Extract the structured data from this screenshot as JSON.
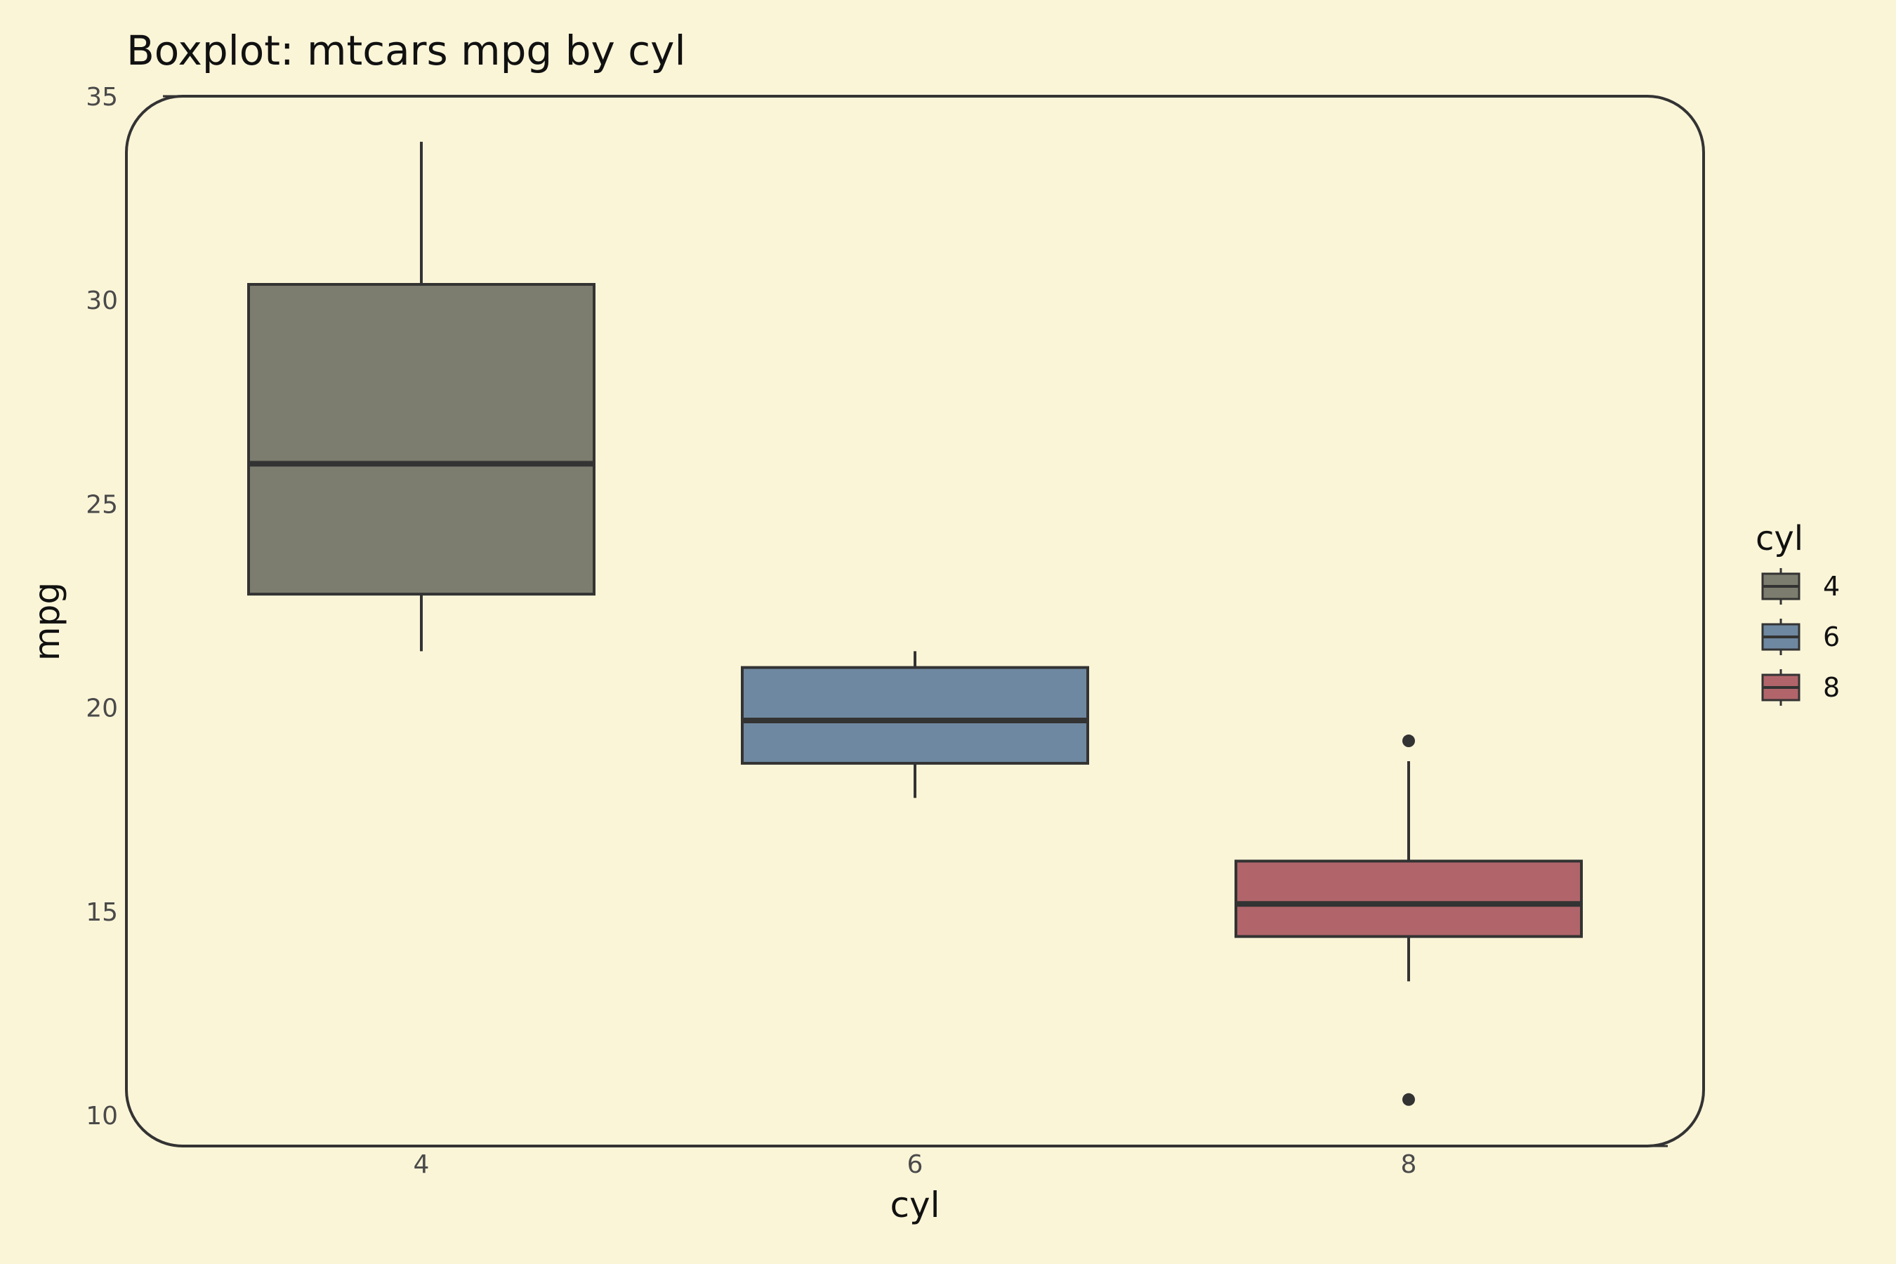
{
  "chart_data": {
    "type": "boxplot",
    "title": "Boxplot: mtcars mpg by cyl",
    "xlabel": "cyl",
    "ylabel": "mpg",
    "ylim": [
      10,
      35
    ],
    "yticks": [
      "10",
      "15",
      "20",
      "25",
      "30",
      "35"
    ],
    "categories": [
      "4",
      "6",
      "8"
    ],
    "boxes": [
      {
        "category": "4",
        "whisker_low": 21.4,
        "q1": 22.8,
        "median": 26.0,
        "q3": 30.4,
        "whisker_high": 33.9,
        "outliers": []
      },
      {
        "category": "6",
        "whisker_low": 17.8,
        "q1": 18.65,
        "median": 19.7,
        "q3": 21.0,
        "whisker_high": 21.4,
        "outliers": []
      },
      {
        "category": "8",
        "whisker_low": 13.3,
        "q1": 14.4,
        "median": 15.2,
        "q3": 16.25,
        "whisker_high": 18.7,
        "outliers": [
          19.2,
          10.4
        ]
      }
    ],
    "legend": {
      "title": "cyl",
      "position": "right",
      "items": [
        "4",
        "6",
        "8"
      ]
    },
    "colors": {
      "4": "#7c7d6e",
      "6": "#6f88a1",
      "8": "#b1656a",
      "outline": "#333333",
      "background": "#fbf5d8"
    },
    "grid": false
  }
}
